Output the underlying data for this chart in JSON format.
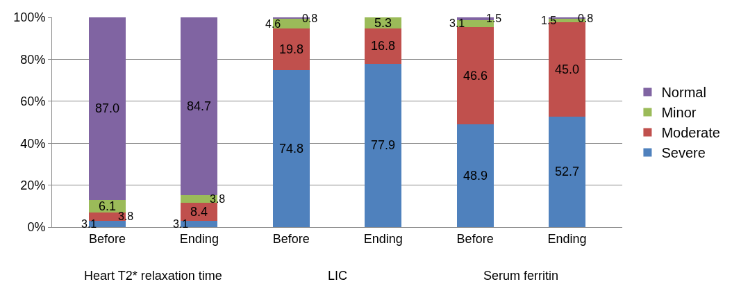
{
  "chart_data": {
    "type": "bar",
    "stacked": true,
    "categories": [
      "Before",
      "Ending",
      "Before",
      "Ending",
      "Before",
      "Ending"
    ],
    "series": [
      {
        "name": "Severe",
        "color": "#4f81bd",
        "values": [
          3.1,
          3.1,
          74.8,
          77.9,
          48.9,
          52.7
        ],
        "value_labels": [
          "3.1",
          "3.1",
          "74.8",
          "77.9",
          "48.9",
          "52.7"
        ]
      },
      {
        "name": "Moderate",
        "color": "#c0504d",
        "values": [
          3.8,
          8.4,
          19.8,
          16.8,
          46.6,
          45.0
        ],
        "value_labels": [
          "3.8",
          "8.4",
          "19.8",
          "16.8",
          "46.6",
          "45.0"
        ]
      },
      {
        "name": "Minor",
        "color": "#9bbb59",
        "values": [
          6.1,
          3.8,
          4.6,
          5.3,
          3.1,
          1.5
        ],
        "value_labels": [
          "6.1",
          "3.8",
          "4.6",
          "5.3",
          "3.1",
          "1.5"
        ]
      },
      {
        "name": "Normal",
        "color": "#8064a2",
        "values": [
          87.0,
          84.7,
          0.8,
          null,
          1.5,
          0.8
        ],
        "value_labels": [
          "87.0",
          "84.7",
          "0.8",
          null,
          "1.5",
          "0.8"
        ]
      }
    ],
    "annotations": [
      "Heart T2* relaxation time",
      "LIC",
      "Serum ferritin"
    ],
    "ylim": [
      0,
      100
    ],
    "yticks": [
      {
        "value": 0,
        "label": "0%"
      },
      {
        "value": 20,
        "label": "20%"
      },
      {
        "value": 40,
        "label": "40%"
      },
      {
        "value": 60,
        "label": "60%"
      },
      {
        "value": 80,
        "label": "80%"
      },
      {
        "value": 100,
        "label": "100%"
      }
    ],
    "grid": "y",
    "legend": "right"
  }
}
